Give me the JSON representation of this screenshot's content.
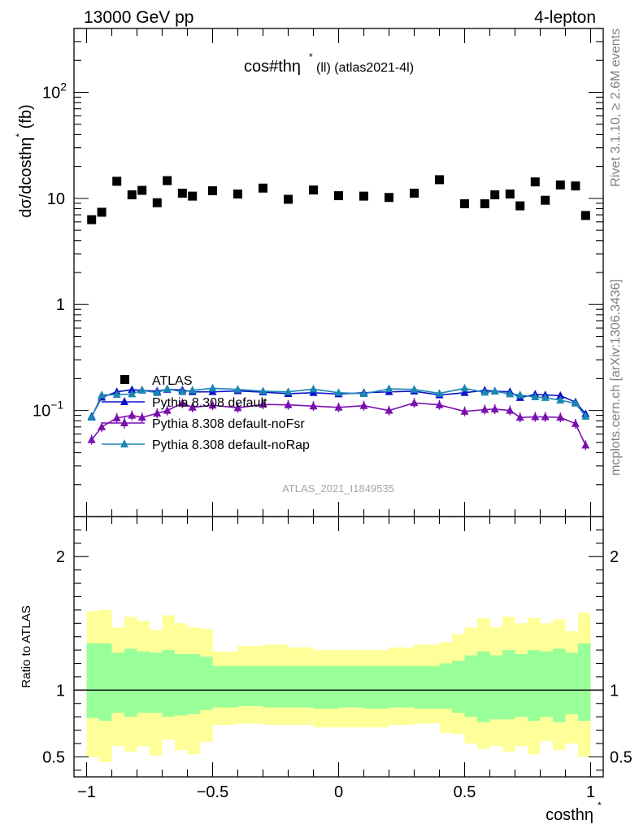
{
  "header": {
    "left": "13000 GeV pp",
    "right": "4-lepton"
  },
  "side_text": {
    "rivet": "Rivet 3.1.10, ≥ 2.6M events",
    "mcplots": "mcplots.cern.ch [arXiv:1306.3436]"
  },
  "plot_title": "cos#thη* (ll) (atlas2021-4l)",
  "plot_title_main": "cos#thη",
  "plot_title_star": "*",
  "plot_title_sub": "(ll) (atlas2021-4l)",
  "analysis_label": "ATLAS_2021_I1849535",
  "colors": {
    "data": "#000000",
    "default": "#0a14c8",
    "noFsr": "#7a0fb0",
    "noRap": "#1a86b4",
    "band_inner": "#99ff99",
    "band_outer": "#ffff99"
  },
  "chart_data": [
    {
      "type": "scatter",
      "name": "main",
      "ylabel": "dσ/dcosthη* (fb)",
      "ylabel_main": "dσ/dcosthη",
      "ylabel_star": "*",
      "ylabel_unit": " (fb)",
      "yscale": "log",
      "xlim": [
        -1.05,
        1.05
      ],
      "ylim": [
        0.01,
        400
      ],
      "y_ticks": [
        {
          "v": 0.1,
          "base": "10",
          "exp": "−1"
        },
        {
          "v": 1,
          "base": "1",
          "exp": ""
        },
        {
          "v": 10,
          "base": "10",
          "exp": ""
        },
        {
          "v": 100,
          "base": "10",
          "exp": "2"
        }
      ],
      "legend": {
        "position": "center-left",
        "entries": [
          {
            "label": "ATLAS",
            "series": "data"
          },
          {
            "label": "Pythia 8.308 default",
            "series": "default"
          },
          {
            "label": "Pythia 8.308 default-noFsr",
            "series": "noFsr"
          },
          {
            "label": "Pythia 8.308 default-noRap",
            "series": "noRap"
          }
        ]
      },
      "series": [
        {
          "name": "ATLAS",
          "key": "data",
          "x": [
            -0.98,
            -0.94,
            -0.88,
            -0.82,
            -0.78,
            -0.72,
            -0.68,
            -0.62,
            -0.58,
            -0.5,
            -0.4,
            -0.3,
            -0.2,
            -0.1,
            0.0,
            0.1,
            0.2,
            0.3,
            0.4,
            0.5,
            0.58,
            0.62,
            0.68,
            0.72,
            0.78,
            0.82,
            0.88,
            0.94,
            0.98
          ],
          "y": [
            6.3,
            7.4,
            14.5,
            10.8,
            11.9,
            9.1,
            14.7,
            11.2,
            10.5,
            11.8,
            11.0,
            12.5,
            9.8,
            12.0,
            10.6,
            10.5,
            10.2,
            11.2,
            15.0,
            8.9,
            8.9,
            10.8,
            11.0,
            8.5,
            14.3,
            9.6,
            13.4,
            13.1,
            6.9
          ]
        },
        {
          "name": "Pythia 8.308 default",
          "key": "default",
          "x": [
            -0.98,
            -0.94,
            -0.88,
            -0.82,
            -0.78,
            -0.72,
            -0.68,
            -0.62,
            -0.58,
            -0.5,
            -0.4,
            -0.3,
            -0.2,
            -0.1,
            0.0,
            0.1,
            0.2,
            0.3,
            0.4,
            0.5,
            0.58,
            0.62,
            0.68,
            0.72,
            0.78,
            0.82,
            0.88,
            0.94,
            0.98
          ],
          "y": [
            0.088,
            0.133,
            0.15,
            0.157,
            0.155,
            0.152,
            0.158,
            0.156,
            0.15,
            0.15,
            0.153,
            0.149,
            0.144,
            0.147,
            0.143,
            0.147,
            0.15,
            0.152,
            0.14,
            0.147,
            0.155,
            0.152,
            0.15,
            0.132,
            0.142,
            0.14,
            0.138,
            0.12,
            0.093
          ]
        },
        {
          "name": "Pythia 8.308 default-noFsr",
          "key": "noFsr",
          "x": [
            -0.98,
            -0.94,
            -0.88,
            -0.82,
            -0.78,
            -0.72,
            -0.68,
            -0.62,
            -0.58,
            -0.5,
            -0.4,
            -0.3,
            -0.2,
            -0.1,
            0.0,
            0.1,
            0.2,
            0.3,
            0.4,
            0.5,
            0.58,
            0.62,
            0.68,
            0.72,
            0.78,
            0.82,
            0.88,
            0.94,
            0.98
          ],
          "y": [
            0.053,
            0.07,
            0.085,
            0.09,
            0.086,
            0.094,
            0.1,
            0.117,
            0.107,
            0.112,
            0.106,
            0.114,
            0.113,
            0.11,
            0.107,
            0.111,
            0.1,
            0.118,
            0.113,
            0.098,
            0.102,
            0.103,
            0.1,
            0.086,
            0.087,
            0.087,
            0.086,
            0.075,
            0.047
          ]
        },
        {
          "name": "Pythia 8.308 default-noRap",
          "key": "noRap",
          "x": [
            -0.98,
            -0.94,
            -0.88,
            -0.82,
            -0.78,
            -0.72,
            -0.68,
            -0.62,
            -0.58,
            -0.5,
            -0.4,
            -0.3,
            -0.2,
            -0.1,
            0.0,
            0.1,
            0.2,
            0.3,
            0.4,
            0.5,
            0.58,
            0.62,
            0.68,
            0.72,
            0.78,
            0.82,
            0.88,
            0.94,
            0.98
          ],
          "y": [
            0.086,
            0.14,
            0.141,
            0.143,
            0.155,
            0.147,
            0.16,
            0.15,
            0.155,
            0.162,
            0.158,
            0.152,
            0.15,
            0.159,
            0.147,
            0.144,
            0.16,
            0.158,
            0.145,
            0.162,
            0.148,
            0.152,
            0.143,
            0.14,
            0.134,
            0.132,
            0.125,
            0.117,
            0.088
          ]
        }
      ]
    },
    {
      "type": "area",
      "name": "ratio",
      "ylabel": "Ratio to ATLAS",
      "xlabel": "costhη*",
      "xlabel_main": "costhη",
      "xlabel_star": "*",
      "xlim": [
        -1.05,
        1.05
      ],
      "ylim": [
        0.35,
        2.3
      ],
      "x_ticks": [
        {
          "v": -1,
          "label": "−1"
        },
        {
          "v": -0.5,
          "label": "−0.5"
        },
        {
          "v": 0,
          "label": "0"
        },
        {
          "v": 0.5,
          "label": "0.5"
        },
        {
          "v": 1,
          "label": "1"
        }
      ],
      "y_ticks": [
        {
          "v": 0.5,
          "label": "0.5"
        },
        {
          "v": 1,
          "label": "1"
        },
        {
          "v": 2,
          "label": "2"
        }
      ],
      "bin_edges": [
        -1.0,
        -0.95,
        -0.9,
        -0.85,
        -0.8,
        -0.75,
        -0.7,
        -0.65,
        -0.6,
        -0.55,
        -0.5,
        -0.4,
        -0.3,
        -0.2,
        -0.1,
        0.0,
        0.1,
        0.2,
        0.3,
        0.4,
        0.45,
        0.5,
        0.55,
        0.6,
        0.65,
        0.7,
        0.75,
        0.8,
        0.85,
        0.9,
        0.95,
        1.0
      ],
      "inner_band": {
        "upper": [
          1.35,
          1.35,
          1.28,
          1.31,
          1.29,
          1.28,
          1.3,
          1.27,
          1.27,
          1.25,
          1.18,
          1.18,
          1.18,
          1.18,
          1.18,
          1.18,
          1.18,
          1.18,
          1.18,
          1.2,
          1.22,
          1.26,
          1.29,
          1.26,
          1.3,
          1.27,
          1.3,
          1.29,
          1.31,
          1.28,
          1.35
        ],
        "lower": [
          0.79,
          0.77,
          0.83,
          0.8,
          0.83,
          0.83,
          0.8,
          0.81,
          0.82,
          0.85,
          0.87,
          0.88,
          0.87,
          0.87,
          0.86,
          0.87,
          0.86,
          0.87,
          0.86,
          0.86,
          0.83,
          0.8,
          0.76,
          0.78,
          0.78,
          0.8,
          0.77,
          0.8,
          0.76,
          0.82,
          0.77
        ]
      },
      "outer_band": {
        "upper": [
          1.59,
          1.6,
          1.47,
          1.55,
          1.52,
          1.45,
          1.56,
          1.5,
          1.47,
          1.46,
          1.29,
          1.33,
          1.34,
          1.32,
          1.3,
          1.3,
          1.3,
          1.32,
          1.34,
          1.36,
          1.42,
          1.47,
          1.54,
          1.47,
          1.55,
          1.5,
          1.54,
          1.5,
          1.53,
          1.44,
          1.58
        ],
        "lower": [
          0.5,
          0.46,
          0.58,
          0.54,
          0.58,
          0.51,
          0.63,
          0.55,
          0.52,
          0.61,
          0.74,
          0.75,
          0.74,
          0.74,
          0.72,
          0.72,
          0.72,
          0.74,
          0.75,
          0.68,
          0.67,
          0.6,
          0.56,
          0.58,
          0.54,
          0.58,
          0.52,
          0.62,
          0.55,
          0.6,
          0.5
        ]
      }
    }
  ]
}
